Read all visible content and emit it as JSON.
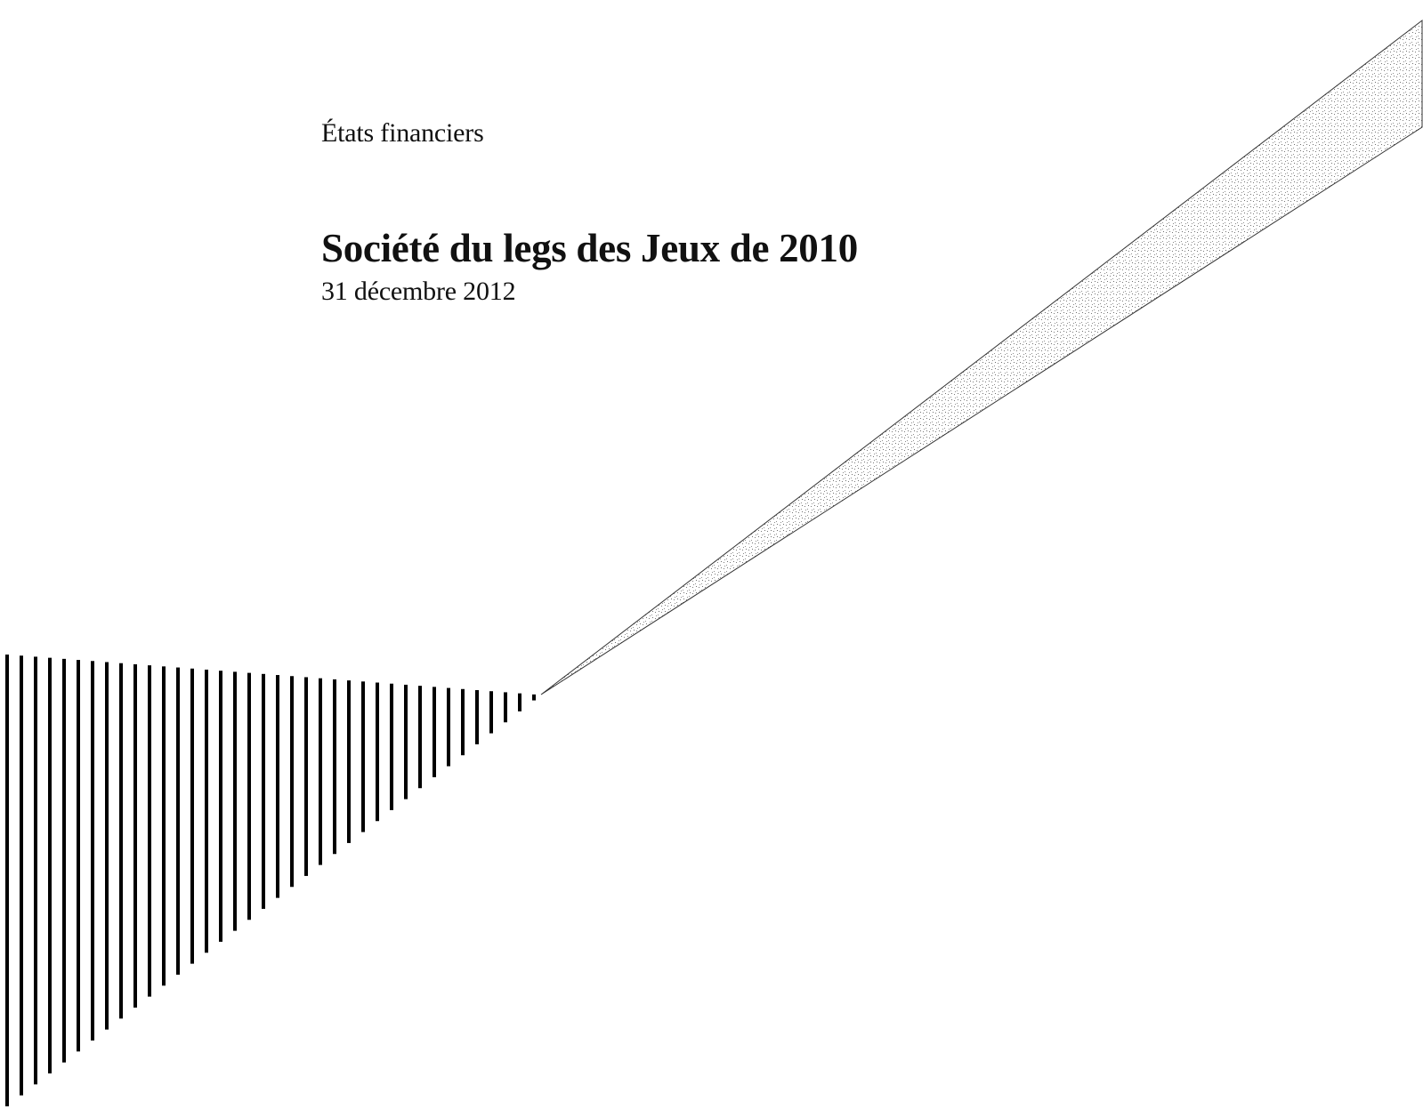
{
  "document": {
    "doc_type": "États financiers",
    "title": "Société du legs des Jeux de 2010",
    "date": "31 décembre 2012"
  },
  "decoration": {
    "left_graphic": "vertical-stripes",
    "right_graphic": "speckled-wedge",
    "stripe_color": "#000000",
    "wedge_outline_color": "#333333",
    "wedge_speckle_color": "#777777"
  }
}
